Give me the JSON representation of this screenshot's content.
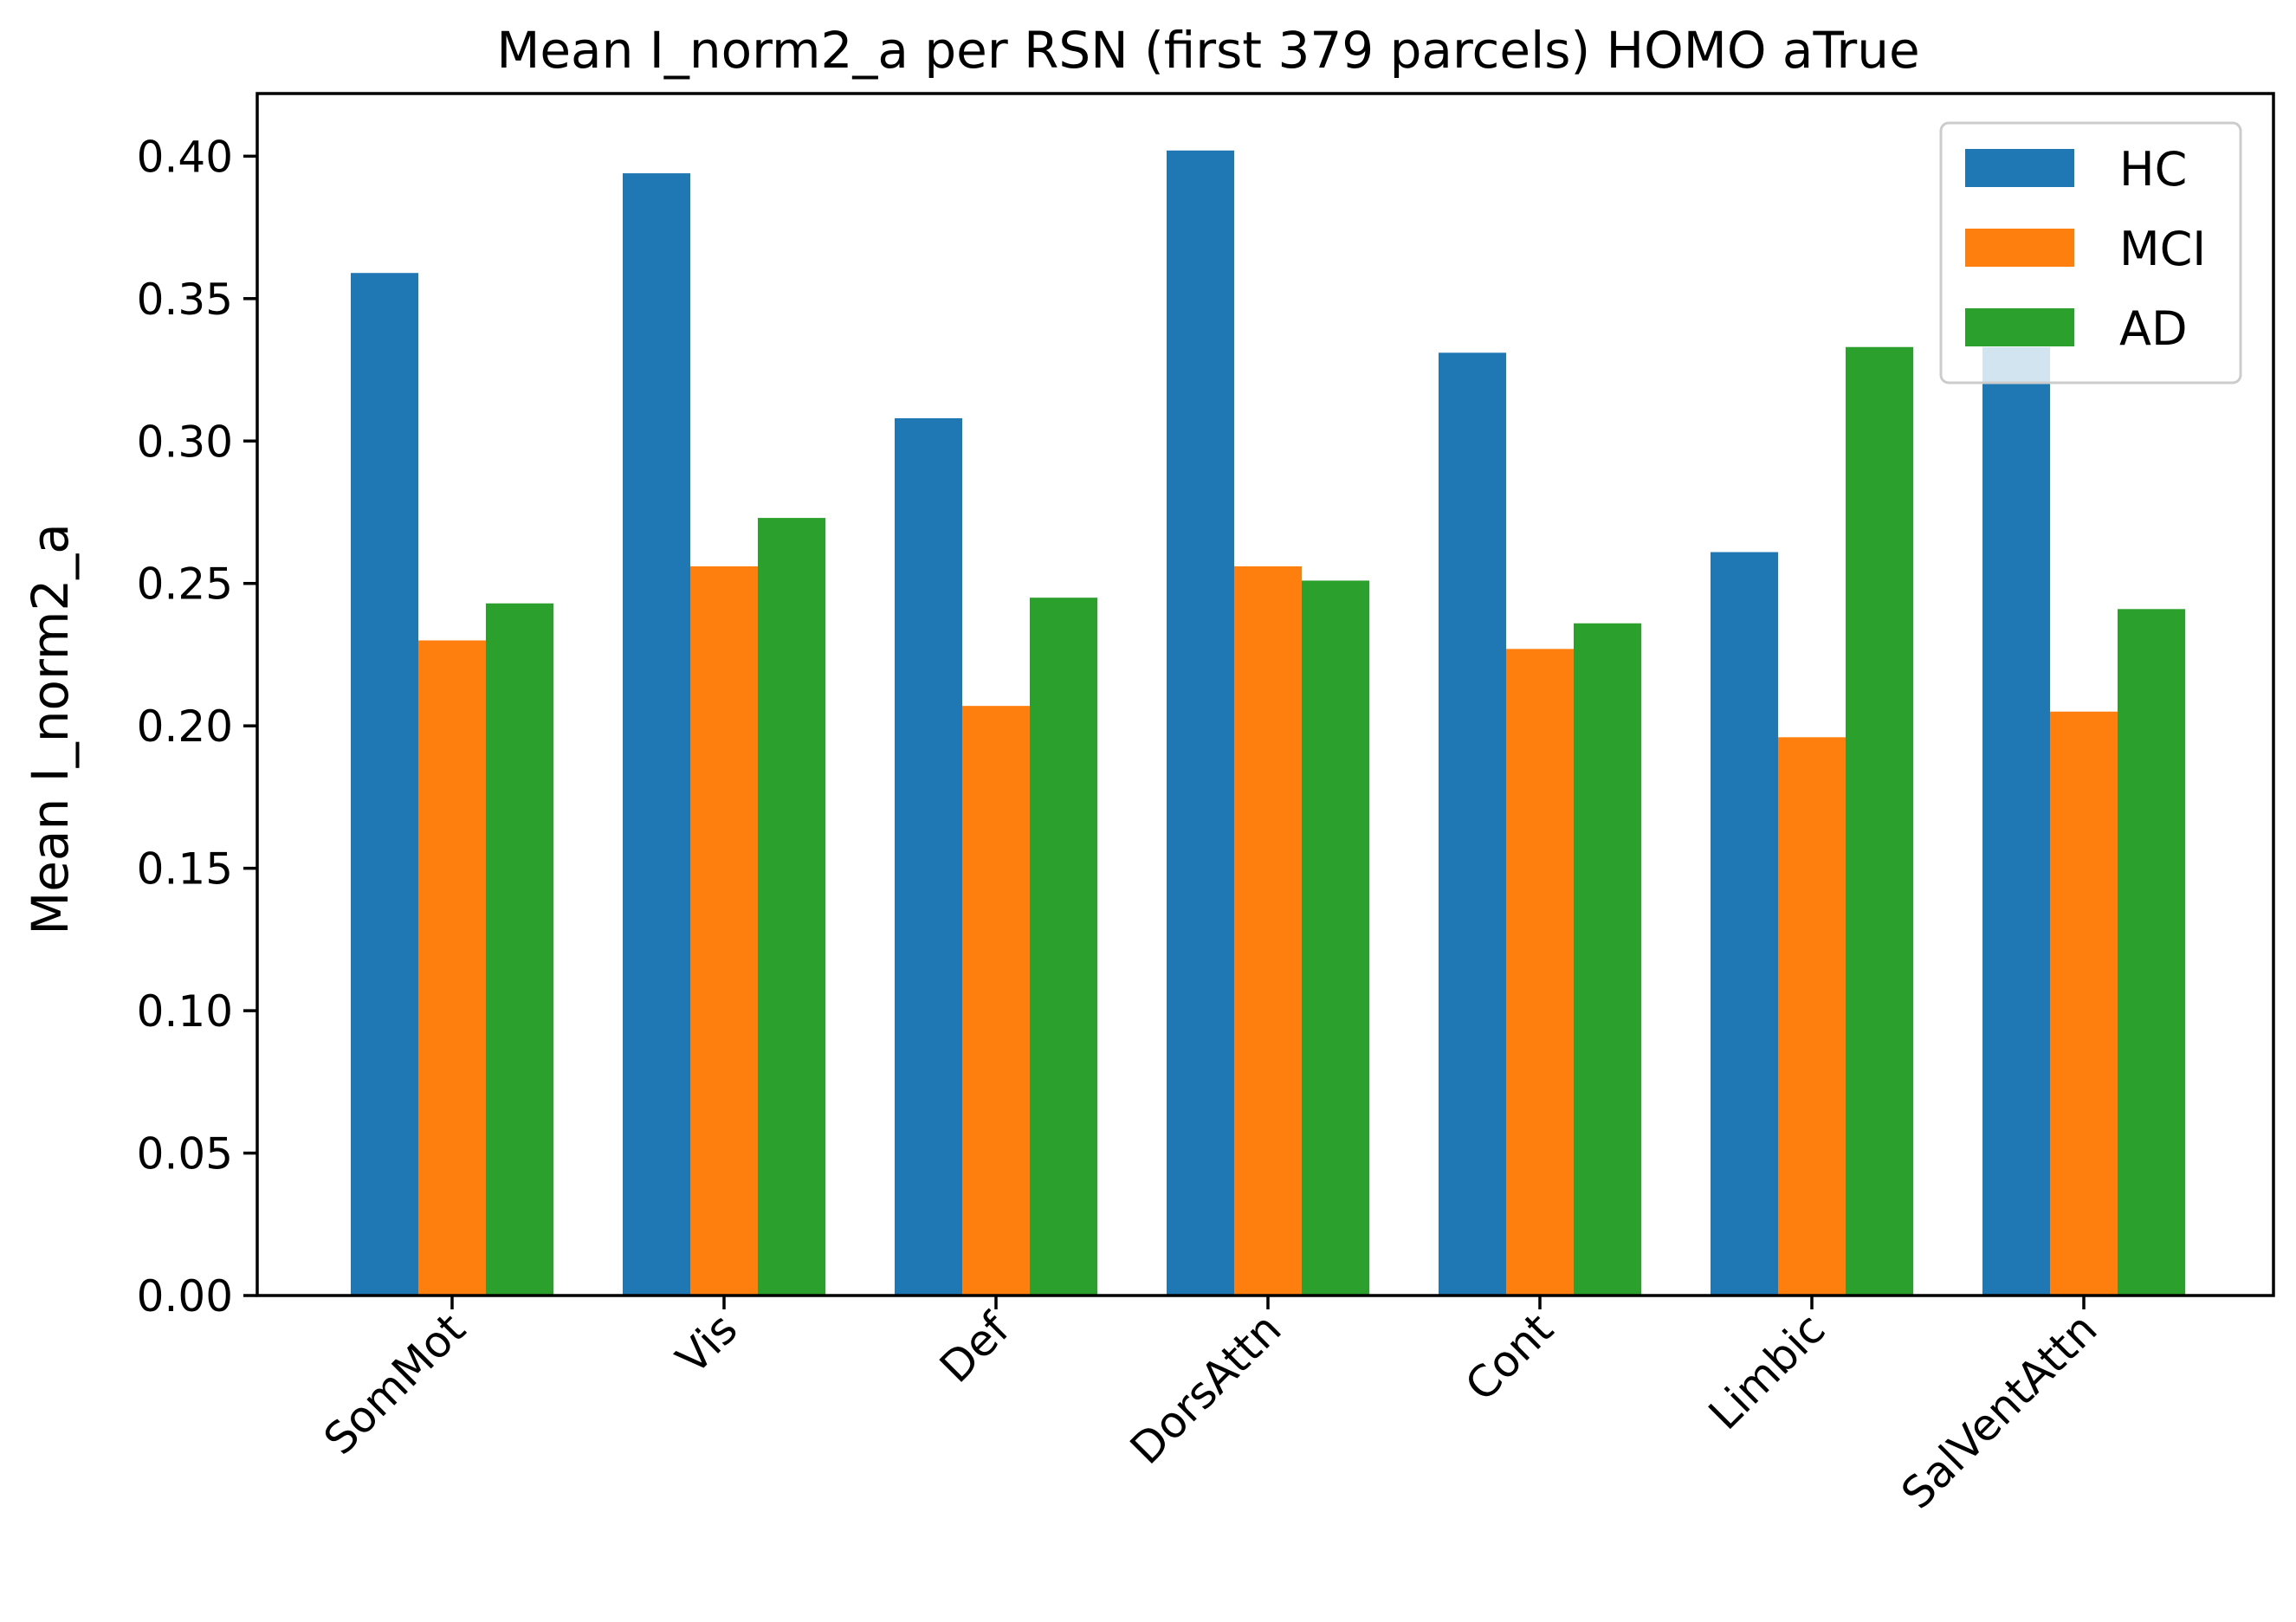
{
  "chart_data": {
    "type": "bar",
    "title": "Mean I_norm2_a per RSN (first 379 parcels) HOMO aTrue",
    "xlabel": "",
    "ylabel": "Mean I_norm2_a",
    "categories": [
      "SomMot",
      "Vis",
      "Def",
      "DorsAttn",
      "Cont",
      "Limbic",
      "SalVentAttn"
    ],
    "series": [
      {
        "name": "HC",
        "color": "#1f77b4",
        "values": [
          0.359,
          0.394,
          0.308,
          0.402,
          0.331,
          0.261,
          0.333
        ]
      },
      {
        "name": "MCI",
        "color": "#ff7f0e",
        "values": [
          0.23,
          0.256,
          0.207,
          0.256,
          0.227,
          0.196,
          0.205
        ]
      },
      {
        "name": "AD",
        "color": "#2ca02c",
        "values": [
          0.243,
          0.273,
          0.245,
          0.251,
          0.236,
          0.333,
          0.241
        ]
      }
    ],
    "ylim": [
      0,
      0.422
    ],
    "yticks": [
      "0.00",
      "0.05",
      "0.10",
      "0.15",
      "0.20",
      "0.25",
      "0.30",
      "0.35",
      "0.40"
    ],
    "grid": false,
    "legend_position": "top-right"
  }
}
